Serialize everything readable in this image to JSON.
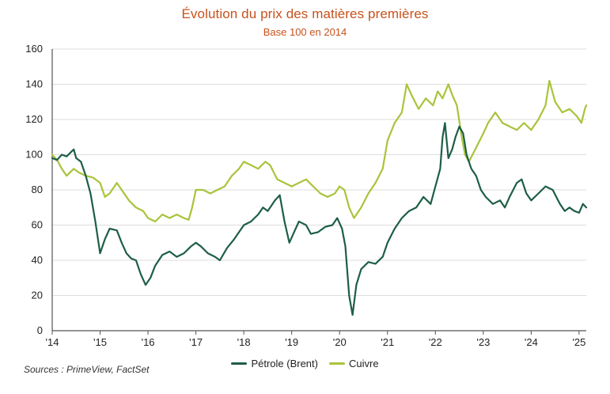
{
  "title": "Évolution du prix des matières premières",
  "subtitle": "Base 100 en 2014",
  "source": "Sources : PrimeView, FactSet",
  "legend": {
    "items": [
      {
        "label": "Pétrole (Brent)",
        "color": "#1E5E45"
      },
      {
        "label": "Cuivre",
        "color": "#A8C43A"
      }
    ]
  },
  "chart_data": {
    "type": "line",
    "title": "Évolution du prix des matières premières",
    "subtitle": "Base 100 en 2014",
    "xlabel": "",
    "ylabel": "",
    "ylim": [
      0,
      160
    ],
    "xlim": [
      2014.0,
      2025.15
    ],
    "y_ticks": [
      0,
      20,
      40,
      60,
      80,
      100,
      120,
      140,
      160
    ],
    "x_ticks": [
      {
        "value": 2014,
        "label": "'14"
      },
      {
        "value": 2015,
        "label": "'15"
      },
      {
        "value": 2016,
        "label": "'16"
      },
      {
        "value": 2017,
        "label": "'17"
      },
      {
        "value": 2018,
        "label": "'18"
      },
      {
        "value": 2019,
        "label": "'19"
      },
      {
        "value": 2020,
        "label": "'20"
      },
      {
        "value": 2021,
        "label": "'21"
      },
      {
        "value": 2022,
        "label": "'22"
      },
      {
        "value": 2023,
        "label": "'23"
      },
      {
        "value": 2024,
        "label": "'24"
      },
      {
        "value": 2025,
        "label": "'25"
      }
    ],
    "grid": "horizontal",
    "legend_position": "bottom",
    "series": [
      {
        "name": "Pétrole (Brent)",
        "color": "#1E5E45",
        "x": [
          2014.0,
          2014.1,
          2014.2,
          2014.3,
          2014.45,
          2014.5,
          2014.6,
          2014.7,
          2014.8,
          2014.9,
          2015.0,
          2015.1,
          2015.2,
          2015.35,
          2015.45,
          2015.55,
          2015.65,
          2015.75,
          2015.85,
          2015.95,
          2016.05,
          2016.15,
          2016.3,
          2016.45,
          2016.6,
          2016.75,
          2016.9,
          2017.0,
          2017.1,
          2017.25,
          2017.4,
          2017.5,
          2017.65,
          2017.8,
          2017.9,
          2018.0,
          2018.15,
          2018.3,
          2018.4,
          2018.5,
          2018.65,
          2018.75,
          2018.85,
          2018.95,
          2019.05,
          2019.15,
          2019.3,
          2019.4,
          2019.55,
          2019.7,
          2019.85,
          2019.95,
          2020.05,
          2020.12,
          2020.2,
          2020.27,
          2020.35,
          2020.45,
          2020.6,
          2020.75,
          2020.9,
          2021.0,
          2021.15,
          2021.3,
          2021.45,
          2021.6,
          2021.75,
          2021.9,
          2022.0,
          2022.1,
          2022.15,
          2022.2,
          2022.27,
          2022.35,
          2022.42,
          2022.5,
          2022.58,
          2022.65,
          2022.75,
          2022.85,
          2022.95,
          2023.05,
          2023.2,
          2023.35,
          2023.45,
          2023.55,
          2023.7,
          2023.8,
          2023.9,
          2024.0,
          2024.15,
          2024.3,
          2024.45,
          2024.6,
          2024.7,
          2024.8,
          2024.9,
          2025.0,
          2025.08,
          2025.15
        ],
        "values": [
          98,
          97,
          100,
          99,
          103,
          98,
          96,
          88,
          78,
          62,
          44,
          52,
          58,
          57,
          50,
          44,
          41,
          40,
          32,
          26,
          30,
          37,
          43,
          45,
          42,
          44,
          48,
          50,
          48,
          44,
          42,
          40,
          47,
          52,
          56,
          60,
          62,
          66,
          70,
          68,
          74,
          77,
          62,
          50,
          56,
          62,
          60,
          55,
          56,
          59,
          60,
          64,
          58,
          48,
          20,
          9,
          26,
          35,
          39,
          38,
          42,
          50,
          58,
          64,
          68,
          70,
          76,
          72,
          82,
          92,
          110,
          118,
          98,
          103,
          110,
          116,
          112,
          100,
          92,
          88,
          80,
          76,
          72,
          74,
          70,
          76,
          84,
          86,
          78,
          74,
          78,
          82,
          80,
          72,
          68,
          70,
          68,
          67,
          72,
          70
        ]
      },
      {
        "name": "Cuivre",
        "color": "#A8C43A",
        "x": [
          2014.0,
          2014.1,
          2014.2,
          2014.3,
          2014.45,
          2014.55,
          2014.7,
          2014.85,
          2015.0,
          2015.1,
          2015.2,
          2015.35,
          2015.45,
          2015.6,
          2015.75,
          2015.9,
          2016.0,
          2016.15,
          2016.3,
          2016.45,
          2016.6,
          2016.75,
          2016.85,
          2016.92,
          2017.0,
          2017.15,
          2017.3,
          2017.45,
          2017.6,
          2017.75,
          2017.9,
          2018.0,
          2018.15,
          2018.3,
          2018.45,
          2018.55,
          2018.7,
          2018.85,
          2019.0,
          2019.15,
          2019.3,
          2019.45,
          2019.6,
          2019.75,
          2019.9,
          2020.0,
          2020.1,
          2020.2,
          2020.3,
          2020.45,
          2020.6,
          2020.75,
          2020.9,
          2021.0,
          2021.15,
          2021.3,
          2021.4,
          2021.5,
          2021.65,
          2021.8,
          2021.95,
          2022.05,
          2022.15,
          2022.27,
          2022.35,
          2022.45,
          2022.55,
          2022.62,
          2022.7,
          2022.85,
          2023.0,
          2023.1,
          2023.25,
          2023.4,
          2023.55,
          2023.7,
          2023.85,
          2024.0,
          2024.15,
          2024.3,
          2024.38,
          2024.5,
          2024.65,
          2024.8,
          2024.95,
          2025.05,
          2025.12,
          2025.15
        ],
        "values": [
          100,
          97,
          92,
          88,
          92,
          90,
          88,
          87,
          84,
          76,
          78,
          84,
          80,
          74,
          70,
          68,
          64,
          62,
          66,
          64,
          66,
          64,
          63,
          70,
          80,
          80,
          78,
          80,
          82,
          88,
          92,
          96,
          94,
          92,
          96,
          94,
          86,
          84,
          82,
          84,
          86,
          82,
          78,
          76,
          78,
          82,
          80,
          70,
          64,
          70,
          78,
          84,
          92,
          108,
          118,
          124,
          140,
          134,
          126,
          132,
          128,
          136,
          132,
          140,
          134,
          128,
          110,
          100,
          96,
          104,
          112,
          118,
          124,
          118,
          116,
          114,
          118,
          114,
          120,
          128,
          142,
          130,
          124,
          126,
          122,
          118,
          126,
          128
        ]
      }
    ]
  }
}
